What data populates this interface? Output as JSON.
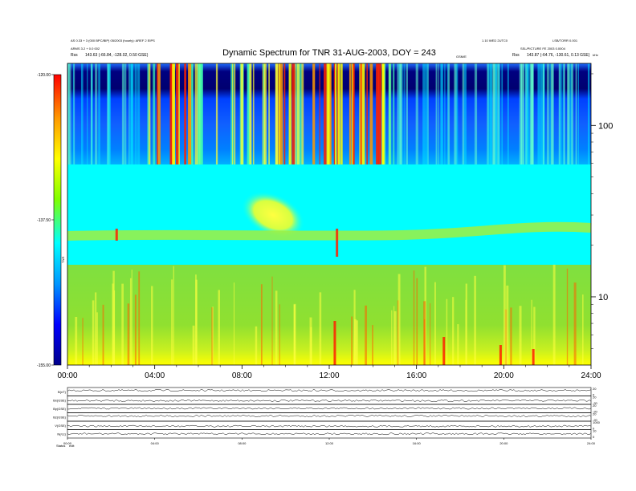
{
  "header": {
    "left_line1": "AS 0.33 + 3 (000 BPC/BIP) 05/2003 (hourly): AREF 2 EIPS",
    "left_line2": "ARMS 3.2 + 0.0 002",
    "left_line3": "Rss",
    "left_position": "143.63 (-66.84, -128.02, 0.50 GSE)",
    "right_line1": "1.10 WED 2UTC0",
    "right_line2": "LSB/TORR 0.001",
    "right_line3": "SSL/PICTURE FE 2003 0.0004",
    "right_label": "GSM/E",
    "right_rss": "Rss",
    "right_position": "143.87 (-64.76, -130.61, 0.13 GSE)",
    "corner_unit": "kHz"
  },
  "chart_data": {
    "type": "heatmap",
    "title": "Dynamic Spectrum for TNR 31-AUG-2003, DOY = 243",
    "x_ticks": [
      "00:00",
      "04:00",
      "08:00",
      "12:00",
      "16:00",
      "20:00",
      "24:00"
    ],
    "x_range_hours": [
      0,
      24
    ],
    "y_ticks": [
      "100",
      "10"
    ],
    "y_scale": "log",
    "y_range_khz": [
      4,
      230
    ],
    "colorbar_ticks": [
      "-120.00",
      "-137.50",
      "-155.00"
    ],
    "colorbar_range_db": [
      -155,
      -120
    ],
    "colorbar_label": "TNR",
    "colormap": [
      "#00008b",
      "#0000ff",
      "#0096ff",
      "#00ffff",
      "#7fff00",
      "#ffff00",
      "#ff9900",
      "#ff0000"
    ],
    "annotations": [
      "band boundary ~70 kHz (blue upper band, cyan middle band)",
      "bright emission patch ~08:00-10:00 near 30 kHz",
      "intense red bursts 04:00-05:30 and 11:00-14:30 above 70 kHz"
    ],
    "sub_panels": [
      {
        "label": "B(nT)",
        "right_ticks": [
          "20",
          "0"
        ]
      },
      {
        "label": "Bx(GSE)",
        "right_ticks": [
          "20",
          "-20"
        ]
      },
      {
        "label": "By(GSE)",
        "right_ticks": [
          "20",
          "-20"
        ]
      },
      {
        "label": "Bz(GSE)",
        "right_ticks": [
          "20",
          "-20"
        ]
      },
      {
        "label": "V(GSE)",
        "right_ticks": [
          "1000",
          "0"
        ]
      },
      {
        "label": "N(/cc)",
        "right_ticks": [
          "10",
          "0"
        ]
      }
    ],
    "sub_x_ticks": [
      "00:00",
      "04:00",
      "08:00",
      "12:00",
      "16:00",
      "20:00",
      "24:00"
    ]
  },
  "footer": {
    "left1": "Status",
    "left2": "edit"
  }
}
